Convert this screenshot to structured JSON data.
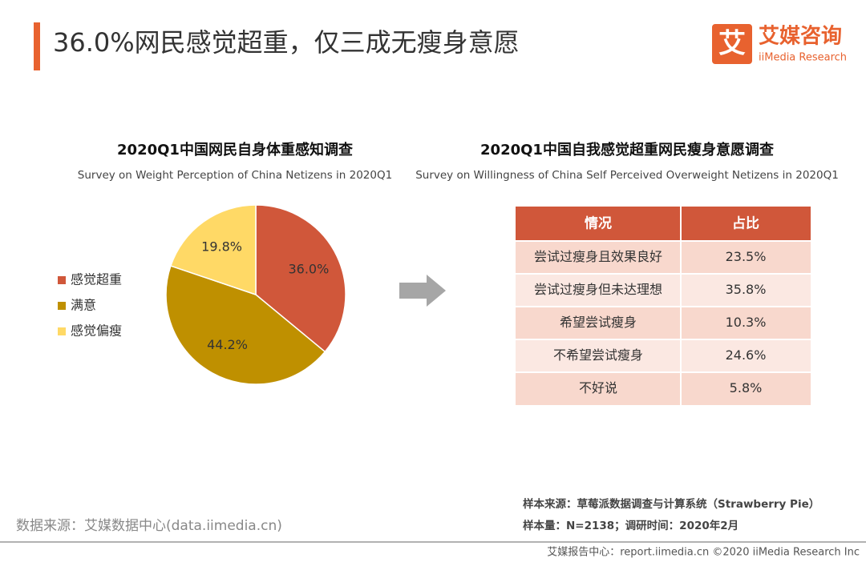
{
  "header": {
    "title": "36.0%网民感觉超重，仅三成无瘦身意愿",
    "logo_icon": "艾",
    "logo_name": "艾媒咨询",
    "logo_sub": "iiMedia Research"
  },
  "chart_data": {
    "type": "pie",
    "title": "2020Q1中国网民自身体重感知调查",
    "subtitle": "Survey on Weight Perception of China Netizens in 2020Q1",
    "categories": [
      "感觉超重",
      "满意",
      "感觉偏瘦"
    ],
    "values": [
      36.0,
      44.2,
      19.8
    ],
    "value_labels": [
      "36.0%",
      "44.2%",
      "19.8%"
    ],
    "colors": [
      "#d0573a",
      "#bf9000",
      "#ffd966"
    ],
    "legend": "left"
  },
  "table": {
    "title": "2020Q1中国自我感觉超重网民瘦身意愿调查",
    "subtitle": "Survey on Willingness of China Self Perceived Overweight Netizens in 2020Q1",
    "header": [
      "情况",
      "占比"
    ],
    "rows": [
      [
        "尝试过瘦身且效果良好",
        "23.5%"
      ],
      [
        "尝试过瘦身但未达理想",
        "35.8%"
      ],
      [
        "希望尝试瘦身",
        "10.3%"
      ],
      [
        "不希望尝试瘦身",
        "24.6%"
      ],
      [
        "不好说",
        "5.8%"
      ]
    ]
  },
  "footer": {
    "sample_source": "样本来源：草莓派数据调查与计算系统（Strawberry Pie）",
    "sample_size": "样本量：N=2138；调研时间：2020年2月",
    "data_source": "数据来源：艾媒数据中心(data.iimedia.cn)",
    "copyright": "艾媒报告中心：report.iimedia.cn  ©2020  iiMedia Research  Inc"
  }
}
